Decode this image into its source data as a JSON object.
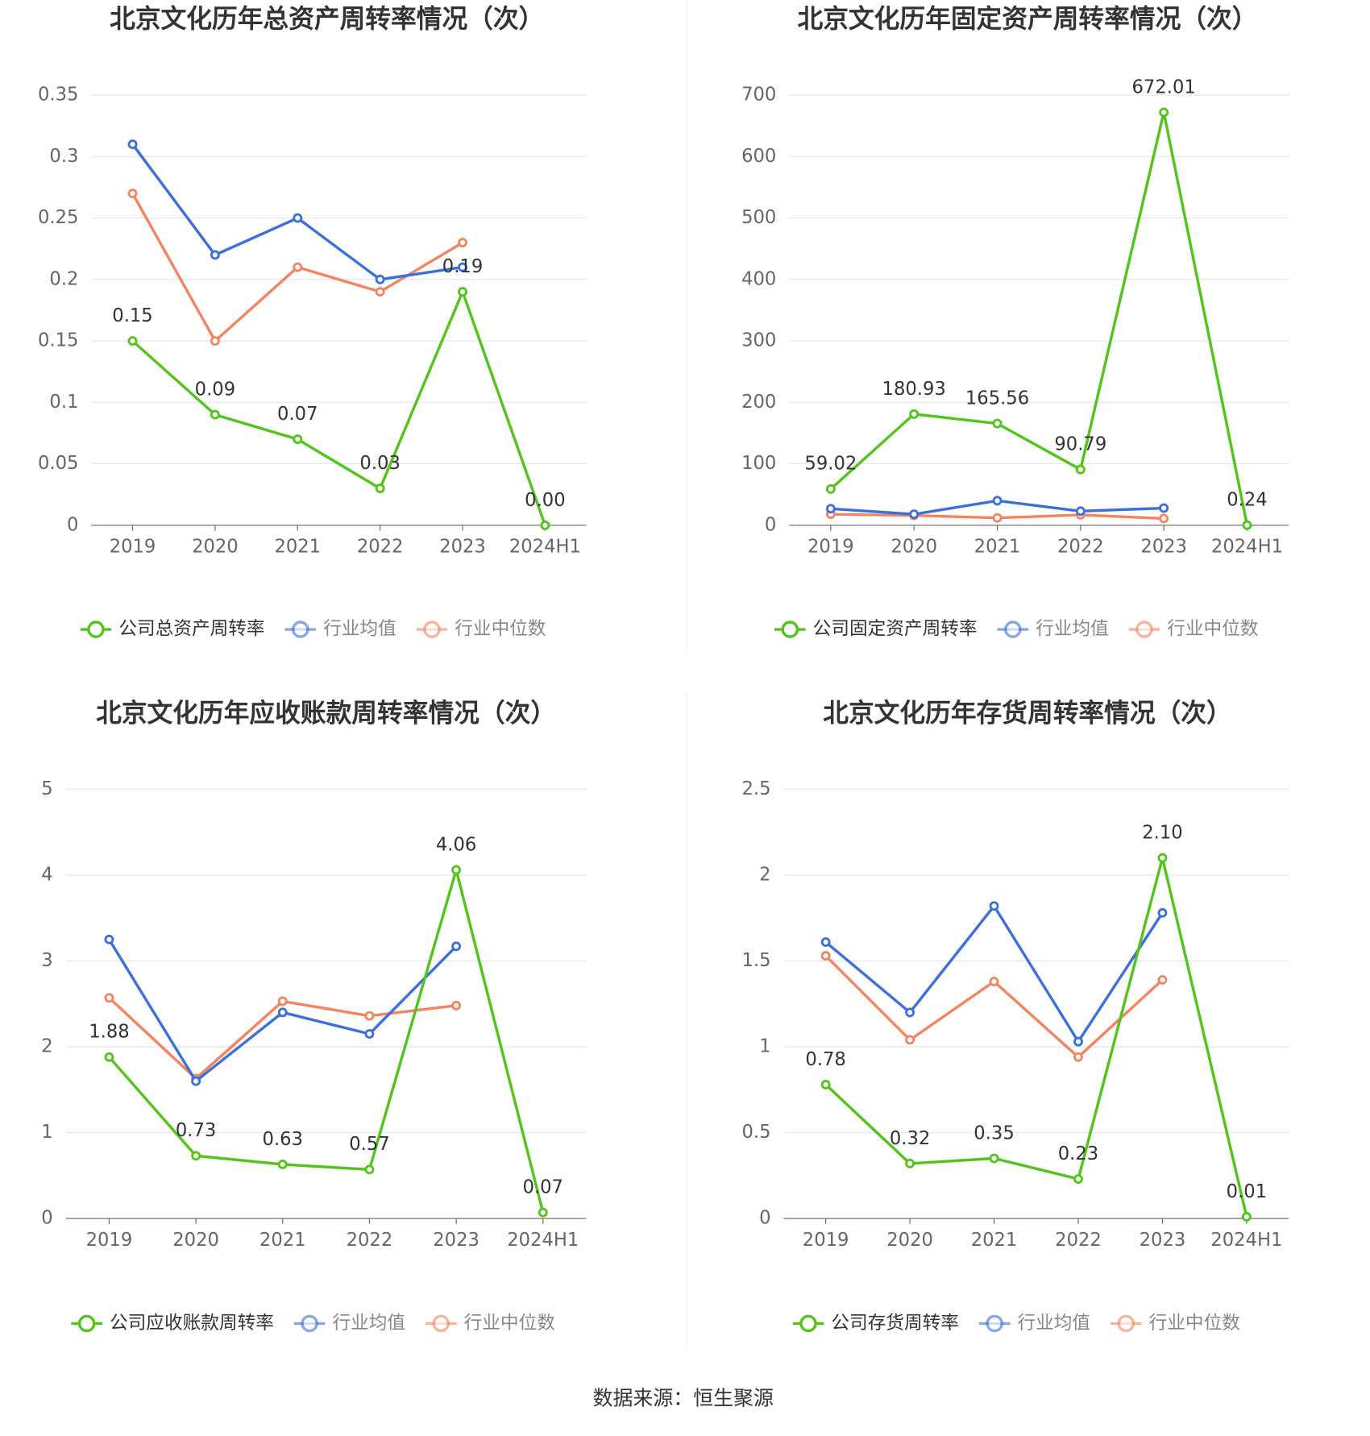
{
  "chart_data": [
    {
      "type": "line",
      "title": "北京文化历年总资产周转率情况（次）",
      "categories": [
        "2019",
        "2020",
        "2021",
        "2022",
        "2023",
        "2024H1"
      ],
      "ylim": [
        0,
        0.35
      ],
      "yticks": [
        0,
        0.05,
        0.1,
        0.15,
        0.2,
        0.25,
        0.3,
        0.35
      ],
      "grid": true,
      "series": [
        {
          "name": "公司总资产周转率",
          "color": "#52c41a",
          "values": [
            0.15,
            0.09,
            0.07,
            0.03,
            0.19,
            0.0
          ],
          "value_labels": [
            "0.15",
            "0.09",
            "0.07",
            "0.03",
            "0.19",
            "0.00"
          ]
        },
        {
          "name": "行业均值",
          "color": "#3a6fdc",
          "values": [
            0.31,
            0.22,
            0.25,
            0.2,
            0.21,
            null
          ]
        },
        {
          "name": "行业中位数",
          "color": "#f4845f",
          "values": [
            0.27,
            0.15,
            0.21,
            0.19,
            0.23,
            null
          ]
        }
      ]
    },
    {
      "type": "line",
      "title": "北京文化历年固定资产周转率情况（次）",
      "categories": [
        "2019",
        "2020",
        "2021",
        "2022",
        "2023",
        "2024H1"
      ],
      "ylim": [
        0,
        700
      ],
      "yticks": [
        0,
        100,
        200,
        300,
        400,
        500,
        600,
        700
      ],
      "grid": true,
      "series": [
        {
          "name": "公司固定资产周转率",
          "color": "#52c41a",
          "values": [
            59.02,
            180.93,
            165.56,
            90.79,
            672.01,
            0.24
          ],
          "value_labels": [
            "59.02",
            "180.93",
            "165.56",
            "90.79",
            "672.01",
            "0.24"
          ]
        },
        {
          "name": "行业均值",
          "color": "#3a6fdc",
          "values": [
            27,
            18,
            40,
            23,
            28,
            null
          ]
        },
        {
          "name": "行业中位数",
          "color": "#f4845f",
          "values": [
            18,
            16,
            12,
            17,
            11,
            null
          ]
        }
      ]
    },
    {
      "type": "line",
      "title": "北京文化历年应收账款周转率情况（次）",
      "categories": [
        "2019",
        "2020",
        "2021",
        "2022",
        "2023",
        "2024H1"
      ],
      "ylim": [
        0,
        5
      ],
      "yticks": [
        0,
        1,
        2,
        3,
        4,
        5
      ],
      "grid": true,
      "series": [
        {
          "name": "公司应收账款周转率",
          "color": "#52c41a",
          "values": [
            1.88,
            0.73,
            0.63,
            0.57,
            4.06,
            0.07
          ],
          "value_labels": [
            "1.88",
            "0.73",
            "0.63",
            "0.57",
            "4.06",
            "0.07"
          ]
        },
        {
          "name": "行业均值",
          "color": "#3a6fdc",
          "values": [
            3.25,
            1.6,
            2.4,
            2.15,
            3.17,
            null
          ]
        },
        {
          "name": "行业中位数",
          "color": "#f4845f",
          "values": [
            2.57,
            1.63,
            2.53,
            2.36,
            2.48,
            null
          ]
        }
      ]
    },
    {
      "type": "line",
      "title": "北京文化历年存货周转率情况（次）",
      "categories": [
        "2019",
        "2020",
        "2021",
        "2022",
        "2023",
        "2024H1"
      ],
      "ylim": [
        0,
        2.5
      ],
      "yticks": [
        0,
        0.5,
        1,
        1.5,
        2,
        2.5
      ],
      "grid": true,
      "series": [
        {
          "name": "公司存货周转率",
          "color": "#52c41a",
          "values": [
            0.78,
            0.32,
            0.35,
            0.23,
            2.1,
            0.01
          ],
          "value_labels": [
            "0.78",
            "0.32",
            "0.35",
            "0.23",
            "2.10",
            "0.01"
          ]
        },
        {
          "name": "行业均值",
          "color": "#3a6fdc",
          "values": [
            1.61,
            1.2,
            1.82,
            1.03,
            1.78,
            null
          ]
        },
        {
          "name": "行业中位数",
          "color": "#f4845f",
          "values": [
            1.53,
            1.04,
            1.38,
            0.94,
            1.39,
            null
          ]
        }
      ]
    }
  ],
  "source": "数据来源：恒生聚源"
}
